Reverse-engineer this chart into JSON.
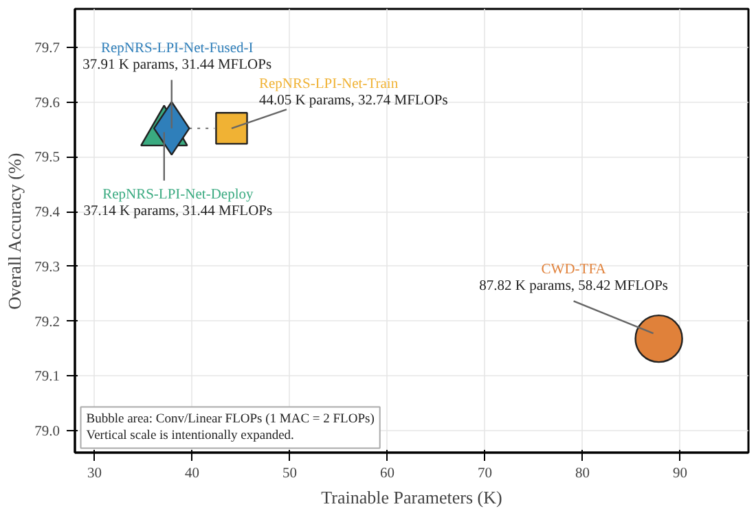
{
  "chart_data": {
    "type": "bubble",
    "xlabel": "Trainable Parameters (K)",
    "ylabel": "Overall Accuracy (%)",
    "xlim": [
      28,
      97
    ],
    "xticks": [
      30,
      40,
      50,
      60,
      70,
      80,
      90
    ],
    "ylim": [
      78.96,
      79.77
    ],
    "yticks": [
      {
        "value": 79.0,
        "label": "79.0"
      },
      {
        "value": 79.1,
        "label": "79.1"
      },
      {
        "value": 79.2,
        "label": "79.2"
      },
      {
        "value": 79.3,
        "label": "79.3"
      },
      {
        "value": 79.4,
        "label": "79.4"
      },
      {
        "value": 79.5,
        "label": "79.5"
      },
      {
        "value": 79.6,
        "label": "79.6"
      },
      {
        "value": 79.7,
        "label": "79.7"
      }
    ],
    "grid": true,
    "series": [
      {
        "type": "line",
        "x": [
          39.7,
          42.3
        ],
        "values": [
          79.552,
          79.552
        ],
        "color": "#808080",
        "line_style": "dotted"
      },
      {
        "name": "RepNRS-LPI-Net-Deploy",
        "x": [
          37.14
        ],
        "values": [
          79.545
        ],
        "sizes": [
          0.538
        ],
        "color": "#3aaa80",
        "marker": "triangle"
      },
      {
        "name": "RepNRS-LPI-Net-Fused-I",
        "x": [
          37.91
        ],
        "values": [
          79.552
        ],
        "sizes": [
          0.538
        ],
        "color": "#2f7fba",
        "marker": "diamond"
      },
      {
        "name": "RepNRS-LPI-Net-Train",
        "x": [
          44.05
        ],
        "values": [
          79.552
        ],
        "sizes": [
          0.56
        ],
        "color": "#f0b234",
        "marker": "square"
      },
      {
        "name": "CWD-TFA",
        "x": [
          87.82
        ],
        "values": [
          79.168
        ],
        "sizes": [
          1
        ],
        "color": "#e0813a",
        "marker": "circle"
      }
    ],
    "annotations": [
      "37.14 K params, 31.44 MFLOPs",
      {
        "text": "37.91 K params, 31.44 MFLOPs",
        "x": 37.91,
        "y": 79.552
      },
      {
        "text": "44.05 K params, 32.74 MFLOPs",
        "x": 44.05,
        "y": 79.552
      },
      {
        "text": "87.82 K params, 58.42 MFLOPs",
        "x": 87.82,
        "y": 79.168
      },
      "Bubble area: Conv/Linear FLOPs (1 MAC = 2 FLOPs)",
      "Vertical scale is intentionally expanded."
    ]
  }
}
